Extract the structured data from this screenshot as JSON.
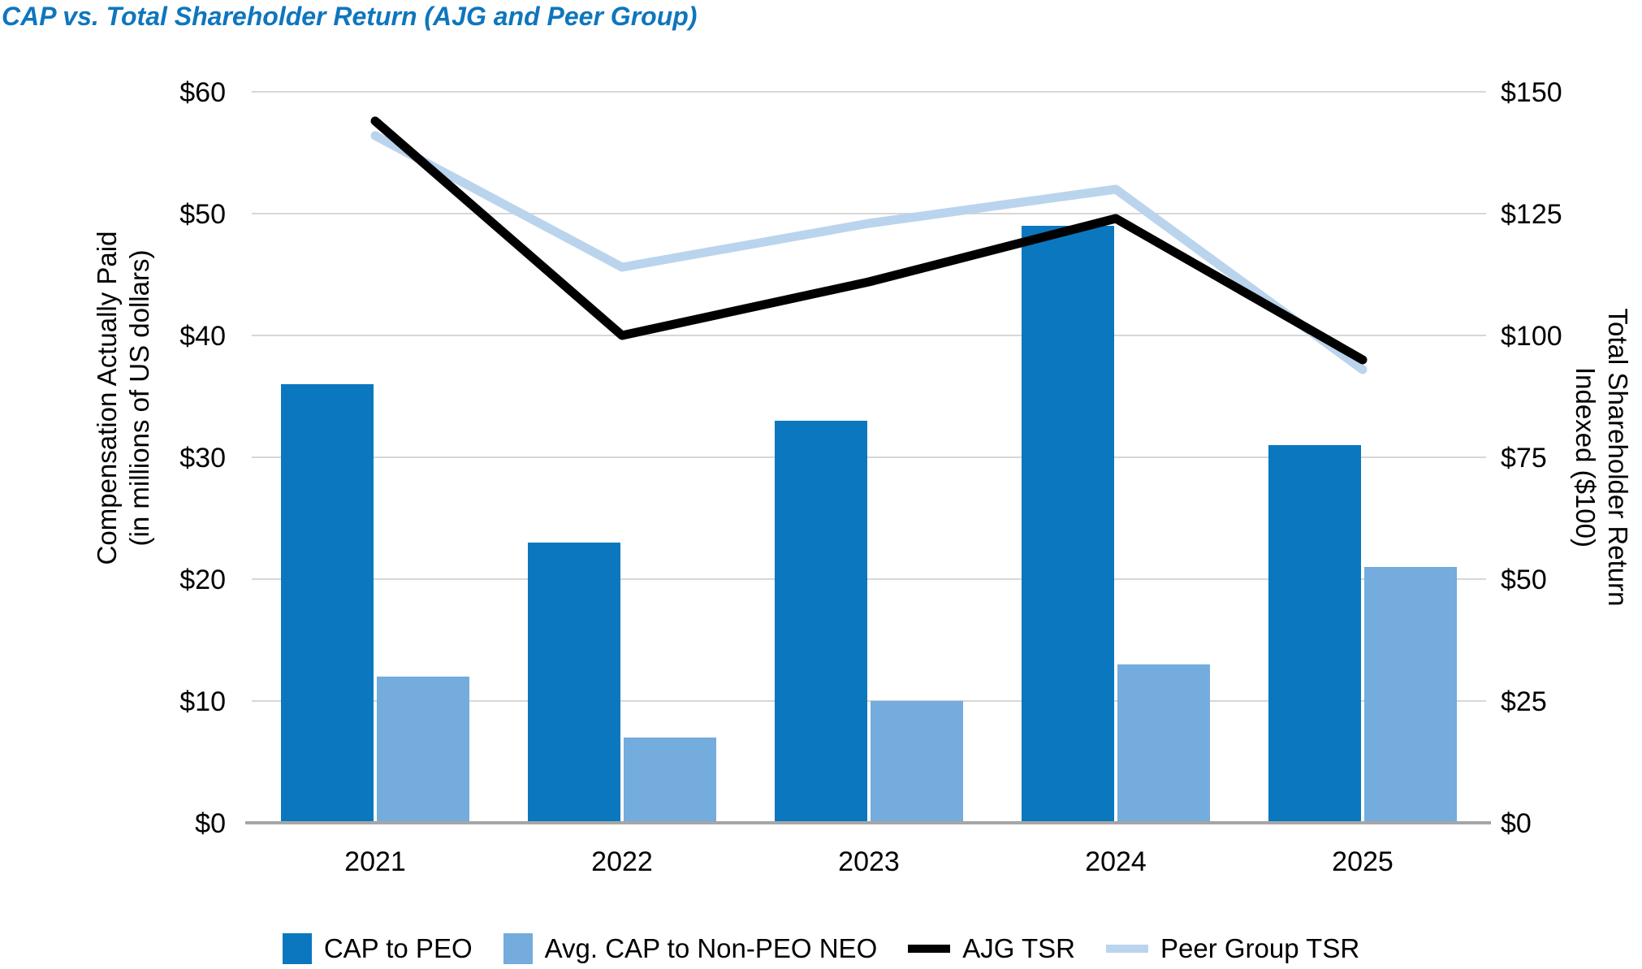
{
  "title": "CAP vs. Total Shareholder Return (AJG and Peer Group)",
  "colors": {
    "title_text": "#0e76bd",
    "cap_peo": "#0b77be",
    "cap_neo": "#73acdd",
    "ajg_tsr": "#000000",
    "peer_tsr": "#bad4ed",
    "gridline": "#d7d7d7",
    "axis_line": "#a6a6a6",
    "tick_text": "#000000"
  },
  "chart_data": {
    "type": "combo_bar_line",
    "categories": [
      "2021",
      "2022",
      "2023",
      "2024",
      "2025"
    ],
    "bar_series": [
      {
        "name": "CAP to PEO",
        "axis": "left",
        "color_key": "cap_peo",
        "values": [
          36,
          23,
          33,
          49,
          31
        ]
      },
      {
        "name": "Avg. CAP to Non-PEO NEO",
        "axis": "left",
        "color_key": "cap_neo",
        "values": [
          12,
          7,
          10,
          13,
          21
        ]
      }
    ],
    "line_series": [
      {
        "name": "Peer Group TSR",
        "axis": "right",
        "color_key": "peer_tsr",
        "values": [
          141,
          114,
          123,
          130,
          93
        ]
      },
      {
        "name": "AJG TSR",
        "axis": "right",
        "color_key": "ajg_tsr",
        "values": [
          144,
          100,
          111,
          124,
          95
        ]
      }
    ],
    "left_axis": {
      "title_line1": "Compensation Actually Paid",
      "title_line2": "(in millions of US dollars)",
      "min": 0,
      "max": 60,
      "tick_interval": 10,
      "tick_labels": [
        "$60",
        "$50",
        "$40",
        "$30",
        "$20",
        "$10",
        "$0"
      ]
    },
    "right_axis": {
      "title_line1": "Total Shareholder Return",
      "title_line2": "Indexed ($100)",
      "min": 0,
      "max": 150,
      "tick_interval": 25,
      "tick_labels": [
        "$150",
        "$125",
        "$100",
        "$75",
        "$50",
        "$25",
        "$0"
      ]
    },
    "x_axis": {
      "labels": [
        "2021",
        "2022",
        "2023",
        "2024",
        "2025"
      ]
    },
    "legend": [
      {
        "label": "CAP to PEO",
        "marker": "square",
        "color_key": "cap_peo"
      },
      {
        "label": "Avg. CAP to Non-PEO NEO",
        "marker": "square",
        "color_key": "cap_neo"
      },
      {
        "label": "AJG TSR",
        "marker": "line",
        "color_key": "ajg_tsr"
      },
      {
        "label": "Peer Group TSR",
        "marker": "line",
        "color_key": "peer_tsr"
      }
    ],
    "grid": true,
    "legend_position": "bottom"
  }
}
